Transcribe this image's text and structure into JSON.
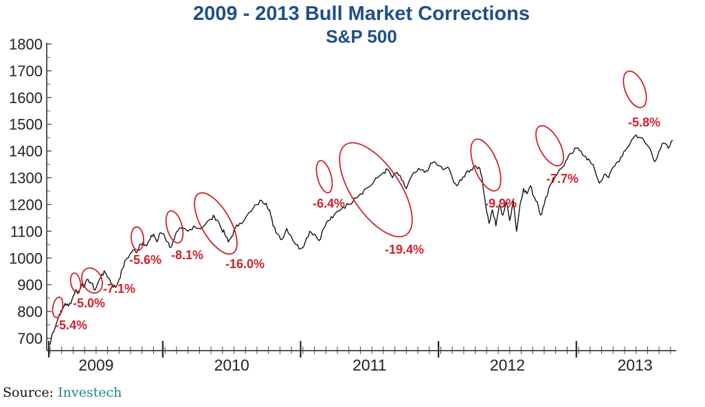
{
  "chart_data": {
    "type": "line",
    "title": "2009 - 2013 Bull Market Corrections",
    "subtitle": "S&P 500",
    "xlabel": "",
    "ylabel": "",
    "ylim": [
      650,
      1800
    ],
    "yticks": [
      700,
      800,
      900,
      1000,
      1100,
      1200,
      1300,
      1400,
      1500,
      1600,
      1700,
      1800
    ],
    "xlim_months": [
      0,
      54.5
    ],
    "x_unit": "months since Mar 2009",
    "xtick_years": [
      "2009",
      "2010",
      "2011",
      "2012",
      "2013"
    ],
    "grid": false,
    "legend": "none",
    "line_color": "#111111",
    "annotation_color": "#d0202a",
    "title_color": "#1f4e8c",
    "series": [
      {
        "name": "S&P 500",
        "points": [
          [
            0,
            676
          ],
          [
            0.2,
            720
          ],
          [
            0.5,
            750
          ],
          [
            0.8,
            790
          ],
          [
            1.0,
            800
          ],
          [
            1.3,
            830
          ],
          [
            1.6,
            820
          ],
          [
            1.9,
            845
          ],
          [
            2.2,
            880
          ],
          [
            2.5,
            870
          ],
          [
            2.8,
            905
          ],
          [
            3.0,
            895
          ],
          [
            3.3,
            920
          ],
          [
            3.6,
            905
          ],
          [
            3.9,
            880
          ],
          [
            4.2,
            910
          ],
          [
            4.5,
            940
          ],
          [
            4.8,
            945
          ],
          [
            5.1,
            925
          ],
          [
            5.4,
            900
          ],
          [
            5.7,
            890
          ],
          [
            6.0,
            920
          ],
          [
            6.3,
            960
          ],
          [
            6.6,
            995
          ],
          [
            6.9,
            1010
          ],
          [
            7.2,
            1030
          ],
          [
            7.5,
            1020
          ],
          [
            7.8,
            1050
          ],
          [
            8.1,
            1060
          ],
          [
            8.4,
            1045
          ],
          [
            8.7,
            1070
          ],
          [
            9.0,
            1090
          ],
          [
            9.3,
            1060
          ],
          [
            9.6,
            1095
          ],
          [
            9.9,
            1090
          ],
          [
            10.2,
            1060
          ],
          [
            10.5,
            1040
          ],
          [
            10.8,
            1070
          ],
          [
            11.1,
            1100
          ],
          [
            11.5,
            1110
          ],
          [
            12.0,
            1100
          ],
          [
            12.5,
            1120
          ],
          [
            13.0,
            1110
          ],
          [
            13.5,
            1125
          ],
          [
            14.0,
            1145
          ],
          [
            14.3,
            1155
          ],
          [
            14.6,
            1140
          ],
          [
            14.9,
            1110
          ],
          [
            15.2,
            1090
          ],
          [
            15.5,
            1060
          ],
          [
            15.8,
            1080
          ],
          [
            16.1,
            1110
          ],
          [
            16.5,
            1130
          ],
          [
            17.0,
            1150
          ],
          [
            17.5,
            1175
          ],
          [
            18.0,
            1200
          ],
          [
            18.4,
            1215
          ],
          [
            18.8,
            1205
          ],
          [
            19.1,
            1180
          ],
          [
            19.4,
            1120
          ],
          [
            19.8,
            1090
          ],
          [
            20.2,
            1070
          ],
          [
            20.6,
            1110
          ],
          [
            21.0,
            1080
          ],
          [
            21.4,
            1050
          ],
          [
            21.8,
            1035
          ],
          [
            22.2,
            1060
          ],
          [
            22.6,
            1100
          ],
          [
            23.0,
            1090
          ],
          [
            23.4,
            1065
          ],
          [
            23.8,
            1110
          ],
          [
            24.2,
            1140
          ],
          [
            24.6,
            1150
          ],
          [
            25.0,
            1175
          ],
          [
            25.5,
            1190
          ],
          [
            26.0,
            1200
          ],
          [
            26.5,
            1225
          ],
          [
            27.0,
            1240
          ],
          [
            27.5,
            1260
          ],
          [
            28.0,
            1275
          ],
          [
            28.5,
            1300
          ],
          [
            29.0,
            1320
          ],
          [
            29.4,
            1330
          ],
          [
            29.8,
            1300
          ],
          [
            30.2,
            1320
          ],
          [
            30.6,
            1290
          ],
          [
            31.0,
            1260
          ],
          [
            31.4,
            1300
          ],
          [
            31.8,
            1320
          ],
          [
            32.2,
            1330
          ],
          [
            32.6,
            1320
          ],
          [
            33.0,
            1340
          ],
          [
            33.4,
            1360
          ],
          [
            33.8,
            1345
          ],
          [
            34.2,
            1330
          ],
          [
            34.6,
            1340
          ],
          [
            35.0,
            1300
          ],
          [
            35.4,
            1270
          ],
          [
            35.8,
            1290
          ],
          [
            36.2,
            1320
          ],
          [
            36.6,
            1330
          ],
          [
            37.0,
            1345
          ],
          [
            37.3,
            1340
          ],
          [
            37.6,
            1300
          ],
          [
            37.9,
            1200
          ],
          [
            38.2,
            1130
          ],
          [
            38.5,
            1180
          ],
          [
            38.8,
            1120
          ],
          [
            39.1,
            1200
          ],
          [
            39.4,
            1160
          ],
          [
            39.7,
            1210
          ],
          [
            40.0,
            1140
          ],
          [
            40.3,
            1220
          ],
          [
            40.6,
            1100
          ],
          [
            40.9,
            1200
          ],
          [
            41.2,
            1260
          ],
          [
            41.5,
            1240
          ],
          [
            41.8,
            1270
          ],
          [
            42.1,
            1230
          ],
          [
            42.4,
            1210
          ],
          [
            42.7,
            1160
          ],
          [
            43.0,
            1200
          ],
          [
            43.4,
            1260
          ],
          [
            43.8,
            1300
          ],
          [
            44.2,
            1320
          ],
          [
            44.6,
            1340
          ],
          [
            45.0,
            1370
          ],
          [
            45.4,
            1390
          ],
          [
            45.8,
            1410
          ],
          [
            46.2,
            1400
          ],
          [
            46.6,
            1380
          ],
          [
            47.0,
            1360
          ],
          [
            47.4,
            1330
          ],
          [
            47.8,
            1280
          ],
          [
            48.2,
            1310
          ],
          [
            48.6,
            1300
          ],
          [
            49.0,
            1340
          ],
          [
            49.4,
            1360
          ],
          [
            49.8,
            1380
          ],
          [
            50.2,
            1410
          ],
          [
            50.6,
            1440
          ],
          [
            51.0,
            1460
          ],
          [
            51.4,
            1450
          ],
          [
            51.8,
            1430
          ],
          [
            52.2,
            1410
          ],
          [
            52.6,
            1360
          ],
          [
            53.0,
            1400
          ],
          [
            53.4,
            1430
          ],
          [
            53.8,
            1410
          ],
          [
            54.2,
            1440
          ]
        ]
      }
    ],
    "annotations": [
      {
        "label": "-5.4%",
        "month": 0.6
      },
      {
        "label": "-5.0%",
        "month": 2.0
      },
      {
        "label": "-7.1%",
        "month": 3.6
      },
      {
        "label": "-5.6%",
        "month": 7.6
      },
      {
        "label": "-8.1%",
        "month": 10.5
      },
      {
        "label": "-16.0%",
        "month": 14.3
      },
      {
        "label": "-6.4%",
        "month": 23.6
      },
      {
        "label": "-19.4%",
        "month": 28.0
      },
      {
        "label": "-9.9%",
        "month": 37.9
      },
      {
        "label": "-7.7%",
        "month": 44.0
      },
      {
        "label": "-5.8%",
        "month": 51.0
      }
    ]
  },
  "source": {
    "label": "Source:",
    "name": "Investech"
  }
}
